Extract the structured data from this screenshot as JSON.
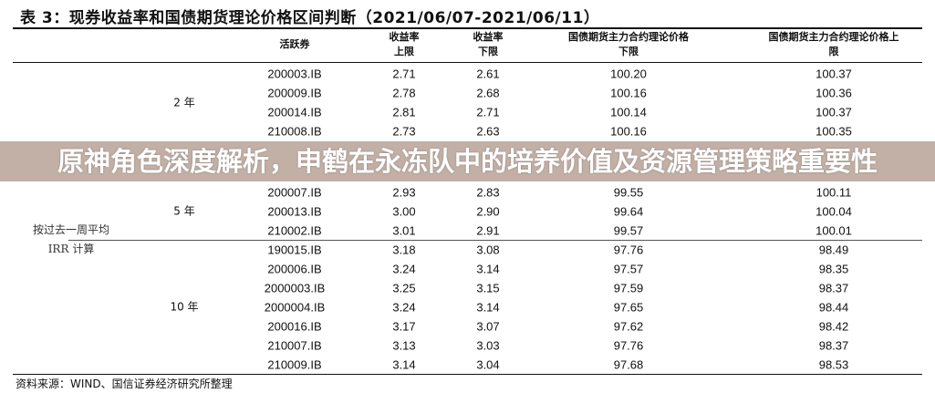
{
  "title": "表 3：现券收益率和国债期货理论价格区间判断（2021/06/07-2021/06/11）",
  "headers": [
    "活跃券",
    "收益率\n上限",
    "收益率\n下限",
    "国债期货主力合约理论价格\n下限",
    "国债期货主力合约理论价格上\n限"
  ],
  "groups": [
    {
      "label": "2 年"
    },
    {
      "label": "5 年"
    },
    {
      "label": "10 年"
    }
  ],
  "note": [
    "按过去一周平均",
    "IRR 计算"
  ],
  "rows": [
    [
      "200003.IB",
      "2.71",
      "2.61",
      "100.20",
      "100.37"
    ],
    [
      "200009.IB",
      "2.78",
      "2.68",
      "100.16",
      "100.36"
    ],
    [
      "200014.IB",
      "2.81",
      "2.71",
      "100.14",
      "100.37"
    ],
    [
      "210008.IB",
      "2.73",
      "2.63",
      "100.16",
      "100.35"
    ],
    [
      "200007.IB",
      "2.93",
      "2.83",
      "99.55",
      "100.11"
    ],
    [
      "200013.IB",
      "3.00",
      "2.90",
      "99.64",
      "100.04"
    ],
    [
      "210002.IB",
      "3.01",
      "2.91",
      "99.57",
      "100.01"
    ],
    [
      "190015.IB",
      "3.18",
      "3.08",
      "97.76",
      "98.49"
    ],
    [
      "200006.IB",
      "3.24",
      "3.14",
      "97.57",
      "98.35"
    ],
    [
      "2000003.IB",
      "3.25",
      "3.15",
      "97.59",
      "98.37"
    ],
    [
      "2000004.IB",
      "3.24",
      "3.14",
      "97.65",
      "98.44"
    ],
    [
      "200016.IB",
      "3.17",
      "3.07",
      "97.62",
      "98.42"
    ],
    [
      "210007.IB",
      "3.13",
      "3.03",
      "97.76",
      "98.37"
    ],
    [
      "210009.IB",
      "3.14",
      "3.04",
      "97.68",
      "98.53"
    ]
  ],
  "source": "资料来源：WIND、国信证券经济研究所整理",
  "banner": "原神角色深度解析，申鹤在永冻队中的培养价值及资源管理策略重要性",
  "colors": {
    "banner": "#aa9184",
    "text": "#111111"
  }
}
